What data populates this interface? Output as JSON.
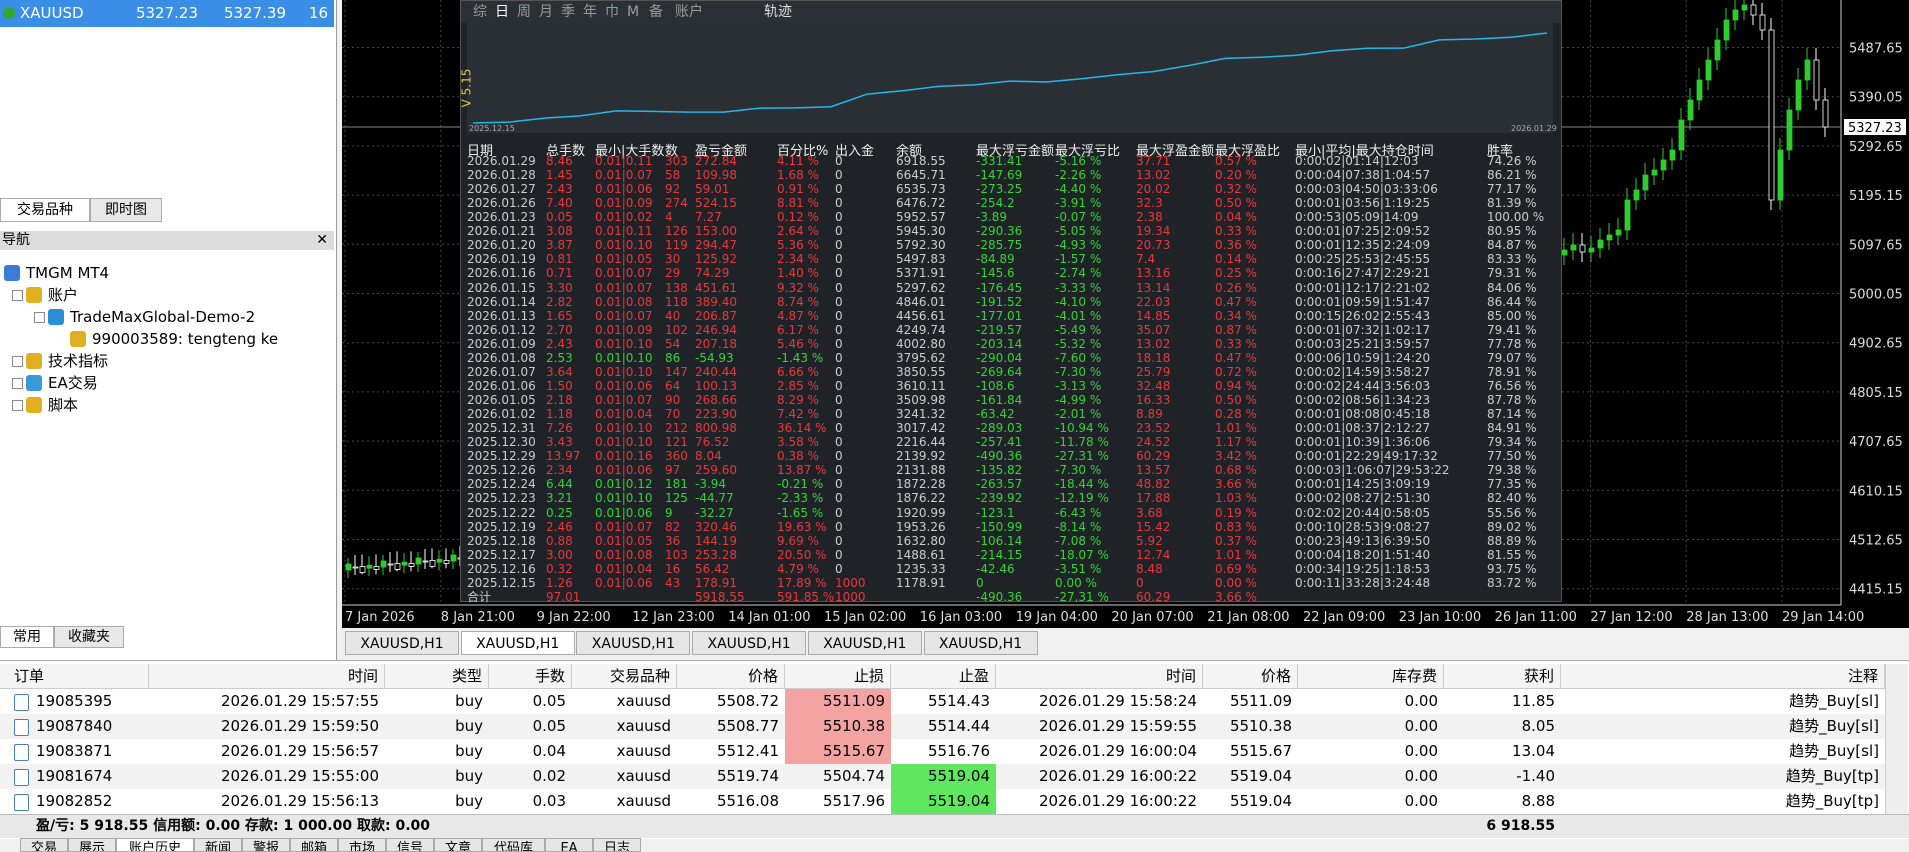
{
  "market_watch": {
    "symbol": "XAUUSD",
    "bid": "5327.23",
    "ask": "5327.39",
    "spread": "16"
  },
  "left_tabs": [
    "交易品种",
    "即时图"
  ],
  "navigator": {
    "title": "导航",
    "items": [
      "TMGM MT4",
      "账户",
      "TradeMaxGlobal-Demo-2",
      "990003589: tengteng ke",
      "技术指标",
      "EA交易",
      "脚本"
    ]
  },
  "bottom_left_tabs": [
    "常用",
    "收藏夹"
  ],
  "chart": {
    "price_labels": [
      "5487.65",
      "5390.05",
      "5292.65",
      "5195.15",
      "5097.65",
      "5000.05",
      "4902.65",
      "4805.15",
      "4707.65",
      "4610.15",
      "4512.65",
      "4415.15"
    ],
    "current_price": "5327.23",
    "time_labels": [
      "7 Jan 2026",
      "8 Jan 21:00",
      "9 Jan 22:00",
      "12 Jan 23:00",
      "14 Jan 01:00",
      "15 Jan 02:00",
      "16 Jan 03:00",
      "19 Jan 04:00",
      "20 Jan 07:00",
      "21 Jan 08:00",
      "22 Jan 09:00",
      "23 Jan 10:00",
      "26 Jan 11:00",
      "27 Jan 12:00",
      "28 Jan 13:00",
      "29 Jan 14:00"
    ],
    "tabs": [
      "XAUUSD,H1",
      "XAUUSD,H1",
      "XAUUSD,H1",
      "XAUUSD,H1",
      "XAUUSD,H1",
      "XAUUSD,H1"
    ]
  },
  "stats_panel": {
    "toolbar": [
      "综",
      "日",
      "周",
      "月",
      "季",
      "年",
      "巾",
      "M",
      "备",
      "账户"
    ],
    "track": "轨迹",
    "version": "V 5.15",
    "start_date": "2025.12.15",
    "end_date": "2026.01.29",
    "columns": [
      "日期",
      "总手数",
      "最小|大手数",
      "数",
      "盈亏金额",
      "百分比%",
      "出入金",
      "余额",
      "最大浮亏金额",
      "最大浮亏比",
      "最大浮盈金额",
      "最大浮盈比",
      "最小|平均|最大持仓时间",
      "胜率"
    ],
    "rows": [
      [
        "2026.01.29",
        "8.46",
        "0.01|0.11",
        "303",
        "272.84",
        "4.11 %",
        "0",
        "6918.55",
        "-331.41",
        "-5.16 %",
        "37.71",
        "0.57 %",
        "0:00:02|01:14|12:03",
        "74.26 %"
      ],
      [
        "2026.01.28",
        "1.45",
        "0.01|0.07",
        "58",
        "109.98",
        "1.68 %",
        "0",
        "6645.71",
        "-147.69",
        "-2.26 %",
        "13.02",
        "0.20 %",
        "0:00:04|07:38|1:04:57",
        "86.21 %"
      ],
      [
        "2026.01.27",
        "2.43",
        "0.01|0.06",
        "92",
        "59.01",
        "0.91 %",
        "0",
        "6535.73",
        "-273.25",
        "-4.40 %",
        "20.02",
        "0.32 %",
        "0:00:03|04:50|03:33:06",
        "77.17 %"
      ],
      [
        "2026.01.26",
        "7.40",
        "0.01|0.09",
        "274",
        "524.15",
        "8.81 %",
        "0",
        "6476.72",
        "-254.2",
        "-3.91 %",
        "32.3",
        "0.50 %",
        "0:00:01|03:56|1:19:25",
        "81.39 %"
      ],
      [
        "2026.01.23",
        "0.05",
        "0.01|0.02",
        "4",
        "7.27",
        "0.12 %",
        "0",
        "5952.57",
        "-3.89",
        "-0.07 %",
        "2.38",
        "0.04 %",
        "0:00:53|05:09|14:09",
        "100.00 %"
      ],
      [
        "2026.01.21",
        "3.08",
        "0.01|0.11",
        "126",
        "153.00",
        "2.64 %",
        "0",
        "5945.30",
        "-290.36",
        "-5.05 %",
        "19.34",
        "0.33 %",
        "0:00:01|07:25|2:09:52",
        "80.95 %"
      ],
      [
        "2026.01.20",
        "3.87",
        "0.01|0.10",
        "119",
        "294.47",
        "5.36 %",
        "0",
        "5792.30",
        "-285.75",
        "-4.93 %",
        "20.73",
        "0.36 %",
        "0:00:01|12:35|2:24:09",
        "84.87 %"
      ],
      [
        "2026.01.19",
        "0.81",
        "0.01|0.05",
        "30",
        "125.92",
        "2.34 %",
        "0",
        "5497.83",
        "-84.89",
        "-1.57 %",
        "7.4",
        "0.14 %",
        "0:00:25|25:53|2:45:55",
        "83.33 %"
      ],
      [
        "2026.01.16",
        "0.71",
        "0.01|0.07",
        "29",
        "74.29",
        "1.40 %",
        "0",
        "5371.91",
        "-145.6",
        "-2.74 %",
        "13.16",
        "0.25 %",
        "0:00:16|27:47|2:29:21",
        "79.31 %"
      ],
      [
        "2026.01.15",
        "3.30",
        "0.01|0.07",
        "138",
        "451.61",
        "9.32 %",
        "0",
        "5297.62",
        "-176.45",
        "-3.33 %",
        "13.14",
        "0.26 %",
        "0:00:01|12:17|2:21:02",
        "84.06 %"
      ],
      [
        "2026.01.14",
        "2.82",
        "0.01|0.08",
        "118",
        "389.40",
        "8.74 %",
        "0",
        "4846.01",
        "-191.52",
        "-4.10 %",
        "22.03",
        "0.47 %",
        "0:00:01|09:59|1:51:47",
        "86.44 %"
      ],
      [
        "2026.01.13",
        "1.65",
        "0.01|0.07",
        "40",
        "206.87",
        "4.87 %",
        "0",
        "4456.61",
        "-177.01",
        "-4.01 %",
        "14.85",
        "0.34 %",
        "0:00:15|26:02|2:55:43",
        "85.00 %"
      ],
      [
        "2026.01.12",
        "2.70",
        "0.01|0.09",
        "102",
        "246.94",
        "6.17 %",
        "0",
        "4249.74",
        "-219.57",
        "-5.49 %",
        "35.07",
        "0.87 %",
        "0:00:01|07:32|1:02:17",
        "79.41 %"
      ],
      [
        "2026.01.09",
        "2.43",
        "0.01|0.10",
        "54",
        "207.18",
        "5.46 %",
        "0",
        "4002.80",
        "-203.14",
        "-5.32 %",
        "13.02",
        "0.33 %",
        "0:00:03|25:21|3:59:57",
        "77.78 %"
      ],
      [
        "2026.01.08",
        "2.53",
        "0.01|0.10",
        "86",
        "-54.93",
        "-1.43 %",
        "0",
        "3795.62",
        "-290.04",
        "-7.60 %",
        "18.18",
        "0.47 %",
        "0:00:06|10:59|1:24:20",
        "79.07 %"
      ],
      [
        "2026.01.07",
        "3.64",
        "0.01|0.10",
        "147",
        "240.44",
        "6.66 %",
        "0",
        "3850.55",
        "-269.64",
        "-7.30 %",
        "25.79",
        "0.72 %",
        "0:00:02|14:59|3:58:27",
        "78.91 %"
      ],
      [
        "2026.01.06",
        "1.50",
        "0.01|0.06",
        "64",
        "100.13",
        "2.85 %",
        "0",
        "3610.11",
        "-108.6",
        "-3.13 %",
        "32.48",
        "0.94 %",
        "0:00:02|24:44|3:56:03",
        "76.56 %"
      ],
      [
        "2026.01.05",
        "2.18",
        "0.01|0.07",
        "90",
        "268.66",
        "8.29 %",
        "0",
        "3509.98",
        "-161.84",
        "-4.99 %",
        "16.33",
        "0.50 %",
        "0:00:02|08:56|1:34:23",
        "87.78 %"
      ],
      [
        "2026.01.02",
        "1.18",
        "0.01|0.04",
        "70",
        "223.90",
        "7.42 %",
        "0",
        "3241.32",
        "-63.42",
        "-2.01 %",
        "8.89",
        "0.28 %",
        "0:00:01|08:08|0:45:18",
        "87.14 %"
      ],
      [
        "2025.12.31",
        "7.26",
        "0.01|0.10",
        "212",
        "800.98",
        "36.14 %",
        "0",
        "3017.42",
        "-289.03",
        "-10.94 %",
        "23.52",
        "1.01 %",
        "0:00:01|08:37|2:12:27",
        "84.91 %"
      ],
      [
        "2025.12.30",
        "3.43",
        "0.01|0.10",
        "121",
        "76.52",
        "3.58 %",
        "0",
        "2216.44",
        "-257.41",
        "-11.78 %",
        "24.52",
        "1.17 %",
        "0:00:01|10:39|1:36:06",
        "79.34 %"
      ],
      [
        "2025.12.29",
        "13.97",
        "0.01|0.16",
        "360",
        "8.04",
        "0.38 %",
        "0",
        "2139.92",
        "-490.36",
        "-27.31 %",
        "60.29",
        "3.42 %",
        "0:00:01|22:29|49:17:32",
        "77.50 %"
      ],
      [
        "2025.12.26",
        "2.34",
        "0.01|0.06",
        "97",
        "259.60",
        "13.87 %",
        "0",
        "2131.88",
        "-135.82",
        "-7.30 %",
        "13.57",
        "0.68 %",
        "0:00:03|1:06:07|29:53:22",
        "79.38 %"
      ],
      [
        "2025.12.24",
        "6.44",
        "0.01|0.12",
        "181",
        "-3.94",
        "-0.21 %",
        "0",
        "1872.28",
        "-263.57",
        "-18.44 %",
        "48.82",
        "3.66 %",
        "0:00:01|14:25|3:09:19",
        "77.35 %"
      ],
      [
        "2025.12.23",
        "3.21",
        "0.01|0.10",
        "125",
        "-44.77",
        "-2.33 %",
        "0",
        "1876.22",
        "-239.92",
        "-12.19 %",
        "17.88",
        "1.03 %",
        "0:00:02|08:27|2:51:30",
        "82.40 %"
      ],
      [
        "2025.12.22",
        "0.25",
        "0.01|0.06",
        "9",
        "-32.27",
        "-1.65 %",
        "0",
        "1920.99",
        "-123.1",
        "-6.43 %",
        "3.68",
        "0.19 %",
        "0:02:02|20:44|0:58:05",
        "55.56 %"
      ],
      [
        "2025.12.19",
        "2.46",
        "0.01|0.07",
        "82",
        "320.46",
        "19.63 %",
        "0",
        "1953.26",
        "-150.99",
        "-8.14 %",
        "15.42",
        "0.83 %",
        "0:00:10|28:53|9:08:27",
        "89.02 %"
      ],
      [
        "2025.12.18",
        "0.88",
        "0.01|0.05",
        "36",
        "144.19",
        "9.69 %",
        "0",
        "1632.80",
        "-106.14",
        "-7.08 %",
        "5.92",
        "0.37 %",
        "0:00:23|49:13|6:39:50",
        "88.89 %"
      ],
      [
        "2025.12.17",
        "3.00",
        "0.01|0.08",
        "103",
        "253.28",
        "20.50 %",
        "0",
        "1488.61",
        "-214.15",
        "-18.07 %",
        "12.74",
        "1.01 %",
        "0:00:04|18:20|1:51:40",
        "81.55 %"
      ],
      [
        "2025.12.16",
        "0.32",
        "0.01|0.04",
        "16",
        "56.42",
        "4.79 %",
        "0",
        "1235.33",
        "-42.46",
        "-3.51 %",
        "8.48",
        "0.69 %",
        "0:00:34|19:25|1:18:53",
        "93.75 %"
      ],
      [
        "2025.12.15",
        "1.26",
        "0.01|0.06",
        "43",
        "178.91",
        "17.89 %",
        "1000",
        "1178.91",
        "0",
        "0.00 %",
        "0",
        "0.00 %",
        "0:00:11|33:28|3:24:48",
        "83.72 %"
      ]
    ],
    "total": {
      "label": "合计",
      "lots": "97.01",
      "pnl": "5918.55",
      "pct": "591.85 %",
      "io": "1000",
      "max_loss": "-490.36",
      "max_loss_pct": "-27.31 %",
      "max_profit": "60.29",
      "max_profit_pct": "3.66 %"
    }
  },
  "orders": {
    "columns": [
      "订单",
      "时间",
      "类型",
      "手数",
      "交易品种",
      "价格",
      "止损",
      "止盈",
      "时间",
      "价格",
      "库存费",
      "获利",
      "注释"
    ],
    "rows": [
      [
        "19085395",
        "2026.01.29 15:57:55",
        "buy",
        "0.05",
        "xauusd",
        "5508.72",
        "5511.09",
        "5514.43",
        "2026.01.29 15:58:24",
        "5511.09",
        "0.00",
        "11.85",
        "趋势_Buy[sl]"
      ],
      [
        "19087840",
        "2026.01.29 15:59:50",
        "buy",
        "0.05",
        "xauusd",
        "5508.77",
        "5510.38",
        "5514.44",
        "2026.01.29 15:59:55",
        "5510.38",
        "0.00",
        "8.05",
        "趋势_Buy[sl]"
      ],
      [
        "19083871",
        "2026.01.29 15:56:57",
        "buy",
        "0.04",
        "xauusd",
        "5512.41",
        "5515.67",
        "5516.76",
        "2026.01.29 16:00:04",
        "5515.67",
        "0.00",
        "13.04",
        "趋势_Buy[sl]"
      ],
      [
        "19081674",
        "2026.01.29 15:55:00",
        "buy",
        "0.02",
        "xauusd",
        "5519.74",
        "5504.74",
        "5519.04",
        "2026.01.29 16:00:22",
        "5519.04",
        "0.00",
        "-1.40",
        "趋势_Buy[tp]"
      ],
      [
        "19082852",
        "2026.01.29 15:56:13",
        "buy",
        "0.03",
        "xauusd",
        "5516.08",
        "5517.96",
        "5519.04",
        "2026.01.29 16:00:22",
        "5519.04",
        "0.00",
        "8.88",
        "趋势_Buy[tp]"
      ]
    ],
    "summary": "盈/亏: 5 918.55 信用额: 0.00 存款: 1 000.00 取款: 0.00",
    "summary_total": "6 918.55"
  },
  "bottom_tabs": [
    "交易",
    "展示",
    "账户历史",
    "新闻",
    "警报",
    "邮箱",
    "市场",
    "信号",
    "文章",
    "代码库",
    "EA",
    "日志"
  ]
}
